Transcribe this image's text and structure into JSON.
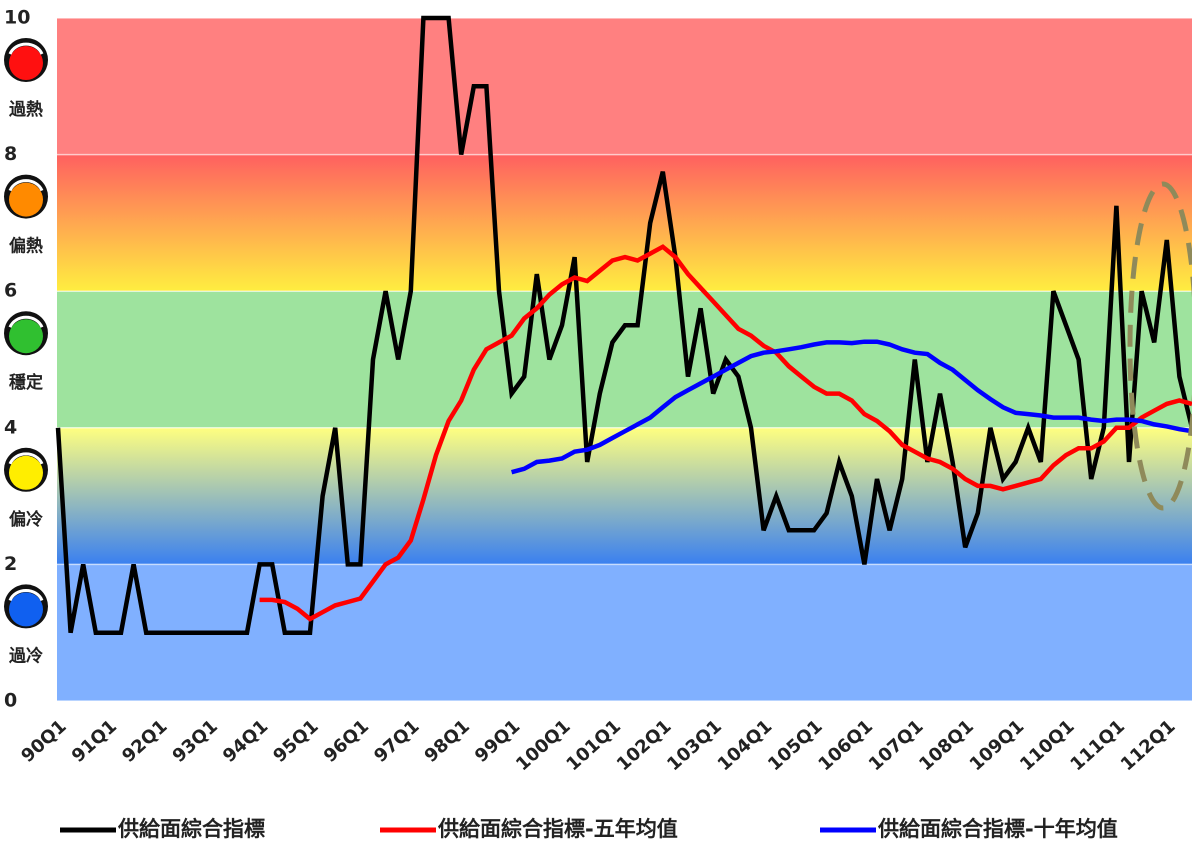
{
  "chart_data": {
    "type": "line",
    "categories": [
      "90Q1",
      null,
      null,
      null,
      "91Q1",
      null,
      null,
      null,
      "92Q1",
      null,
      null,
      null,
      "93Q1",
      null,
      null,
      null,
      "94Q1",
      null,
      null,
      null,
      "95Q1",
      null,
      null,
      null,
      "96Q1",
      null,
      null,
      null,
      "97Q1",
      null,
      null,
      null,
      "98Q1",
      null,
      null,
      null,
      "99Q1",
      null,
      null,
      null,
      "100Q1",
      null,
      null,
      null,
      "101Q1",
      null,
      null,
      null,
      "102Q1",
      null,
      null,
      null,
      "103Q1",
      null,
      null,
      null,
      "104Q1",
      null,
      null,
      null,
      "105Q1",
      null,
      null,
      null,
      "106Q1",
      null,
      null,
      null,
      "107Q1",
      null,
      null,
      null,
      "108Q1",
      null,
      null,
      null,
      "109Q1",
      null,
      null,
      null,
      "110Q1",
      null,
      null,
      null,
      "111Q1",
      null,
      null,
      null,
      "112Q1",
      null,
      null
    ],
    "series": [
      {
        "name": "供給面綜合指標",
        "color": "#000000",
        "values": [
          4,
          1,
          2,
          1,
          1,
          1,
          2,
          1,
          1,
          1,
          1,
          1,
          1,
          1,
          1,
          1,
          2,
          2,
          1,
          1,
          1,
          3,
          4,
          2,
          2,
          5,
          6,
          5,
          6,
          10,
          10,
          10,
          8,
          9,
          9,
          6,
          4.5,
          4.75,
          6.25,
          5,
          5.5,
          6.5,
          3.5,
          4.5,
          5.25,
          5.5,
          5.5,
          7,
          7.75,
          6.5,
          4.75,
          5.75,
          4.5,
          5,
          4.75,
          4,
          2.5,
          3,
          2.5,
          2.5,
          2.5,
          2.75,
          3.5,
          3,
          2,
          3.25,
          2.5,
          3.25,
          5,
          3.5,
          4.5,
          3.5,
          2.25,
          2.75,
          4,
          3.25,
          3.5,
          4,
          3.5,
          6,
          5.5,
          5,
          3.25,
          4,
          7.25,
          3.5,
          6,
          5.25,
          6.75,
          4.75,
          4
        ]
      },
      {
        "name": "供給面綜合指標-五年均值",
        "color": "#ff0000",
        "values": [
          null,
          null,
          null,
          null,
          null,
          null,
          null,
          null,
          null,
          null,
          null,
          null,
          null,
          null,
          null,
          null,
          1.48,
          1.48,
          1.45,
          1.35,
          1.2,
          1.3,
          1.4,
          1.45,
          1.5,
          1.75,
          2,
          2.1,
          2.35,
          2.95,
          3.6,
          4.1,
          4.4,
          4.85,
          5.15,
          5.25,
          5.35,
          5.6,
          5.75,
          5.95,
          6.1,
          6.2,
          6.15,
          6.3,
          6.45,
          6.5,
          6.45,
          6.55,
          6.65,
          6.5,
          6.25,
          6.05,
          5.85,
          5.65,
          5.45,
          5.35,
          5.2,
          5.1,
          4.9,
          4.75,
          4.6,
          4.5,
          4.5,
          4.4,
          4.2,
          4.1,
          3.95,
          3.75,
          3.65,
          3.55,
          3.5,
          3.4,
          3.25,
          3.15,
          3.15,
          3.1,
          3.15,
          3.2,
          3.25,
          3.45,
          3.6,
          3.7,
          3.7,
          3.8,
          4,
          4,
          4.15,
          4.25,
          4.35,
          4.4,
          4.35
        ]
      },
      {
        "name": "供給面綜合指標-十年均值",
        "color": "#0000ff",
        "values": [
          null,
          null,
          null,
          null,
          null,
          null,
          null,
          null,
          null,
          null,
          null,
          null,
          null,
          null,
          null,
          null,
          null,
          null,
          null,
          null,
          null,
          null,
          null,
          null,
          null,
          null,
          null,
          null,
          null,
          null,
          null,
          null,
          null,
          null,
          null,
          null,
          3.35,
          3.4,
          3.5,
          3.52,
          3.55,
          3.65,
          3.68,
          3.75,
          3.85,
          3.95,
          4.05,
          4.15,
          4.3,
          4.45,
          4.55,
          4.65,
          4.75,
          4.85,
          4.95,
          5.05,
          5.1,
          5.12,
          5.15,
          5.18,
          5.22,
          5.25,
          5.25,
          5.24,
          5.26,
          5.26,
          5.22,
          5.15,
          5.1,
          5.08,
          4.95,
          4.85,
          4.7,
          4.55,
          4.42,
          4.3,
          4.22,
          4.2,
          4.18,
          4.15,
          4.15,
          4.15,
          4.12,
          4.1,
          4.12,
          4.12,
          4.1,
          4.05,
          4.02,
          3.98,
          3.95
        ]
      }
    ],
    "zones": [
      {
        "label": "過熱",
        "from": 8,
        "to": 10,
        "colors": [
          "#ff8080",
          "#ff8080"
        ],
        "lamp": "#ff1010"
      },
      {
        "label": "偏熱",
        "from": 6,
        "to": 8,
        "colors": [
          "#ff6060",
          "#ffee40"
        ],
        "lamp": "#ff8a00"
      },
      {
        "label": "穩定",
        "from": 4,
        "to": 6,
        "colors": [
          "#9ee39e",
          "#9ee39e"
        ],
        "lamp": "#30c030"
      },
      {
        "label": "偏冷",
        "from": 2,
        "to": 4,
        "colors": [
          "#ffff80",
          "#3a80f0"
        ],
        "lamp": "#ffee00"
      },
      {
        "label": "過冷",
        "from": 0,
        "to": 2,
        "colors": [
          "#80b0ff",
          "#80b0ff"
        ],
        "lamp": "#1060f0"
      }
    ],
    "ylim": [
      0,
      10
    ],
    "yticks": [
      0,
      2,
      4,
      6,
      8,
      10
    ],
    "grid": true
  }
}
